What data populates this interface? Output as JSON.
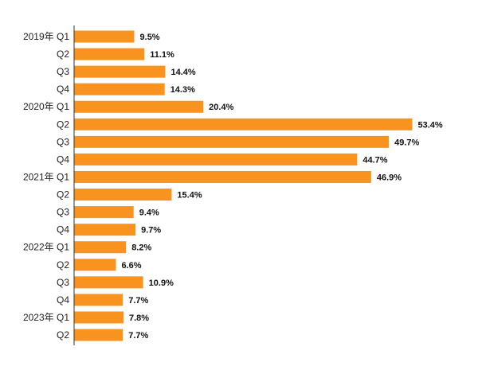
{
  "chart_data": {
    "type": "bar",
    "orientation": "horizontal",
    "title": "",
    "xlabel": "",
    "ylabel": "",
    "xlim": [
      0,
      60
    ],
    "grid": false,
    "bar_color": "#F7931E",
    "categories": [
      "2019年 Q1",
      "Q2",
      "Q3",
      "Q4",
      "2020年 Q1",
      "Q2",
      "Q3",
      "Q4",
      "2021年 Q1",
      "Q2",
      "Q3",
      "Q4",
      "2022年 Q1",
      "Q2",
      "Q3",
      "Q4",
      "2023年 Q1",
      "Q2"
    ],
    "values": [
      9.5,
      11.1,
      14.4,
      14.3,
      20.4,
      53.4,
      49.7,
      44.7,
      46.9,
      15.4,
      9.4,
      9.7,
      8.2,
      6.6,
      10.9,
      7.7,
      7.8,
      7.7
    ],
    "value_labels": [
      "9.5%",
      "11.1%",
      "14.4%",
      "14.3%",
      "20.4%",
      "53.4%",
      "49.7%",
      "44.7%",
      "46.9%",
      "15.4%",
      "9.4%",
      "9.7%",
      "8.2%",
      "6.6%",
      "10.9%",
      "7.7%",
      "7.8%",
      "7.7%"
    ]
  }
}
